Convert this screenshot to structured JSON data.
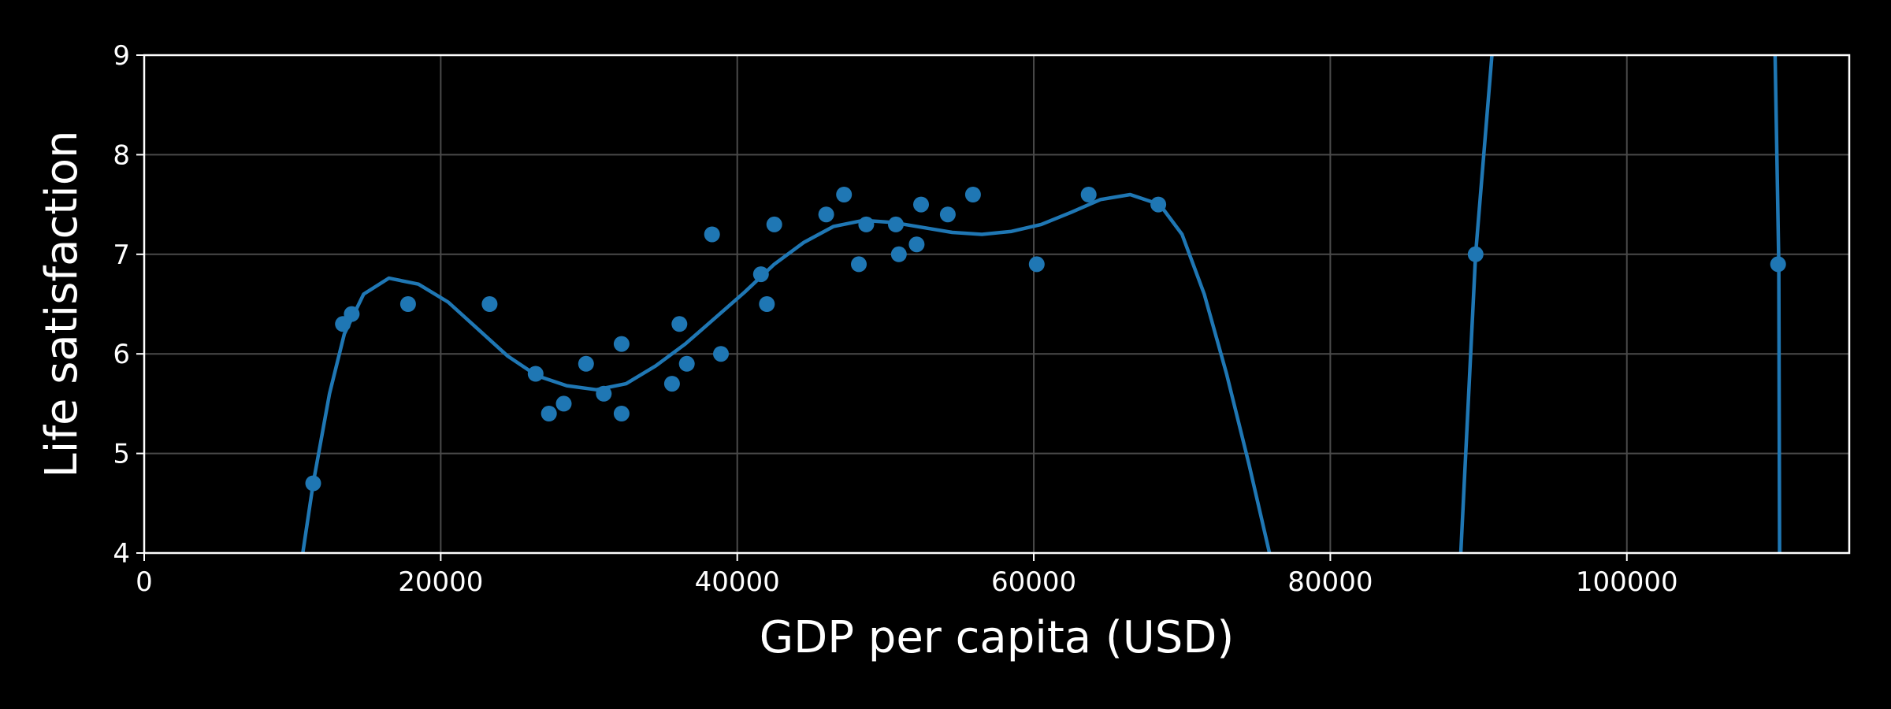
{
  "chart_data": {
    "type": "scatter",
    "xlabel": "GDP per capita (USD)",
    "ylabel": "Life satisfaction",
    "xlim": [
      0,
      115000
    ],
    "ylim": [
      4,
      9
    ],
    "x_ticks": [
      0,
      20000,
      40000,
      60000,
      80000,
      100000
    ],
    "x_tick_labels": [
      "0",
      "20000",
      "40000",
      "60000",
      "80000",
      "100000"
    ],
    "y_ticks": [
      4,
      5,
      6,
      7,
      8,
      9
    ],
    "y_tick_labels": [
      "4",
      "5",
      "6",
      "7",
      "8",
      "9"
    ],
    "grid": true,
    "colors": {
      "background": "#000000",
      "series": "#1f77b4",
      "grid": "#4a4a4a",
      "axes": "#ffffff"
    },
    "points": [
      [
        11400,
        4.7
      ],
      [
        13400,
        6.3
      ],
      [
        14000,
        6.4
      ],
      [
        17800,
        6.5
      ],
      [
        23300,
        6.5
      ],
      [
        26400,
        5.8
      ],
      [
        27300,
        5.4
      ],
      [
        28300,
        5.5
      ],
      [
        29800,
        5.9
      ],
      [
        31000,
        5.6
      ],
      [
        32200,
        5.4
      ],
      [
        32200,
        6.1
      ],
      [
        35600,
        5.7
      ],
      [
        36100,
        6.3
      ],
      [
        36600,
        5.9
      ],
      [
        38300,
        7.2
      ],
      [
        38900,
        6.0
      ],
      [
        41600,
        6.8
      ],
      [
        42000,
        6.5
      ],
      [
        42500,
        7.3
      ],
      [
        46000,
        7.4
      ],
      [
        47200,
        7.6
      ],
      [
        48200,
        6.9
      ],
      [
        48700,
        7.3
      ],
      [
        50700,
        7.3
      ],
      [
        50900,
        7.0
      ],
      [
        52100,
        7.1
      ],
      [
        52400,
        7.5
      ],
      [
        54200,
        7.4
      ],
      [
        55900,
        7.6
      ],
      [
        60200,
        6.9
      ],
      [
        63700,
        7.6
      ],
      [
        68400,
        7.5
      ],
      [
        89800,
        7.0
      ],
      [
        110200,
        6.9
      ]
    ],
    "fit_line": [
      [
        10700,
        4.0
      ],
      [
        11400,
        4.7
      ],
      [
        12500,
        5.6
      ],
      [
        13500,
        6.2
      ],
      [
        14800,
        6.6
      ],
      [
        16500,
        6.76
      ],
      [
        18500,
        6.7
      ],
      [
        20500,
        6.52
      ],
      [
        22500,
        6.25
      ],
      [
        24500,
        5.98
      ],
      [
        26500,
        5.78
      ],
      [
        28500,
        5.68
      ],
      [
        30500,
        5.64
      ],
      [
        32500,
        5.7
      ],
      [
        34500,
        5.88
      ],
      [
        36500,
        6.1
      ],
      [
        38500,
        6.36
      ],
      [
        40500,
        6.62
      ],
      [
        42500,
        6.9
      ],
      [
        44500,
        7.12
      ],
      [
        46500,
        7.28
      ],
      [
        48500,
        7.34
      ],
      [
        50500,
        7.32
      ],
      [
        52500,
        7.27
      ],
      [
        54500,
        7.22
      ],
      [
        56500,
        7.2
      ],
      [
        58500,
        7.23
      ],
      [
        60500,
        7.3
      ],
      [
        62500,
        7.42
      ],
      [
        64500,
        7.55
      ],
      [
        66500,
        7.6
      ],
      [
        68500,
        7.5
      ],
      [
        70000,
        7.2
      ],
      [
        71500,
        6.6
      ],
      [
        73000,
        5.8
      ],
      [
        74500,
        4.9
      ],
      [
        75900,
        4.0
      ]
    ],
    "fit_line_right_a": [
      [
        88800,
        4.0
      ],
      [
        89800,
        7.0
      ],
      [
        90900,
        9.0
      ]
    ],
    "fit_line_right_b": [
      [
        110000,
        9.0
      ],
      [
        110250,
        6.9
      ],
      [
        110300,
        4.0
      ]
    ]
  }
}
